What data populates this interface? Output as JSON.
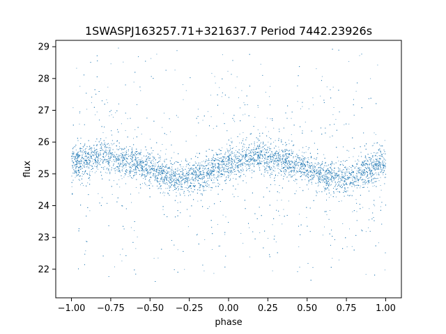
{
  "chart_data": {
    "type": "scatter",
    "title": "1SWASPJ163257.71+321637.7 Period 7442.23926s",
    "xlabel": "phase",
    "ylabel": "flux",
    "xlim": [
      -1.1,
      1.1
    ],
    "ylim": [
      21.1,
      29.2
    ],
    "xticks": [
      -1.0,
      -0.75,
      -0.5,
      -0.25,
      0.0,
      0.25,
      0.5,
      0.75,
      1.0
    ],
    "xtick_labels": [
      "−1.00",
      "−0.75",
      "−0.50",
      "−0.25",
      "0.00",
      "0.25",
      "0.50",
      "0.75",
      "1.00"
    ],
    "yticks": [
      22,
      23,
      24,
      25,
      26,
      27,
      28,
      29
    ],
    "ytick_labels": [
      "22",
      "23",
      "24",
      "25",
      "26",
      "27",
      "28",
      "29"
    ],
    "grid": false,
    "legend": "none",
    "series": [
      {
        "color": "#1f77b4",
        "point_count": "dense",
        "phase_range": [
          -1.0,
          1.0
        ],
        "trend": {
          "phase": [
            -1.0,
            -0.8,
            -0.6,
            -0.4,
            -0.3,
            -0.2,
            0.0,
            0.2,
            0.4,
            0.6,
            0.7,
            0.8,
            1.0
          ],
          "flux": [
            25.35,
            25.6,
            25.35,
            24.95,
            24.85,
            24.95,
            25.3,
            25.6,
            25.35,
            24.95,
            24.85,
            24.95,
            25.3
          ]
        },
        "core_spread": 0.45,
        "flux_range": [
          21.6,
          29.0
        ]
      }
    ]
  }
}
